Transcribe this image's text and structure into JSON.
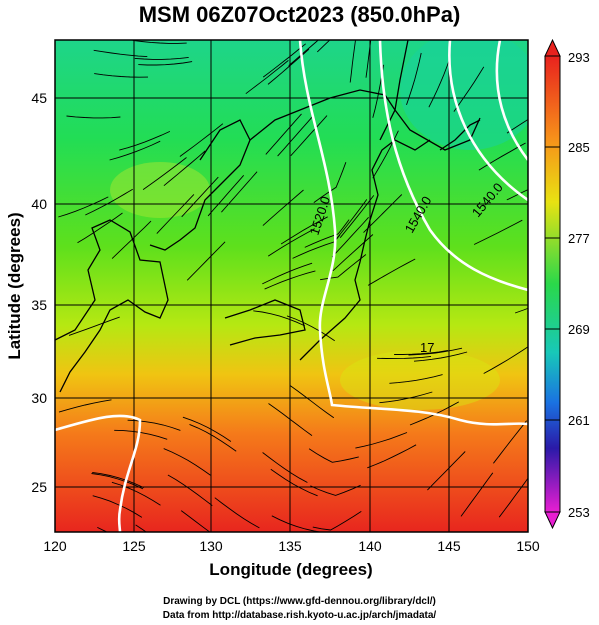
{
  "title": "MSM 06Z07Oct2023 (850.0hPa)",
  "x_axis": {
    "label": "Longitude (degrees)",
    "ticks": [
      "120",
      "125",
      "130",
      "135",
      "140",
      "145",
      "150"
    ]
  },
  "y_axis": {
    "label": "Latitude  (degrees)",
    "ticks": [
      "25",
      "30",
      "35",
      "40",
      "45"
    ]
  },
  "colorbar": {
    "ticks": [
      "293",
      "285",
      "277",
      "269",
      "261",
      "253"
    ],
    "min": 253,
    "max": 293
  },
  "contour_labels": [
    "1520.0",
    "1540.0",
    "1540.0",
    "17"
  ],
  "credits": {
    "line1": "Drawing by DCL (https://www.gfd-dennou.org/library/dcl/)",
    "line2": "Data from http://database.rish.kyoto-u.ac.jp/arch/jmadata/"
  },
  "map": {
    "lon_range": [
      120,
      150
    ],
    "lat_range": [
      22.5,
      48
    ],
    "field": "temperature (K)",
    "overlay": "streamlines",
    "contours": "geopotential height"
  }
}
